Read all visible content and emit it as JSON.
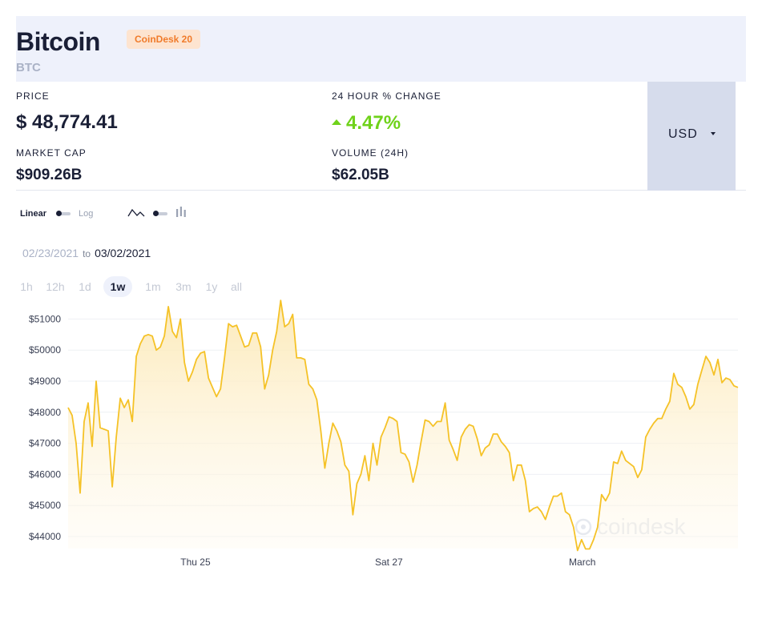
{
  "header": {
    "coin_name": "Bitcoin",
    "badge": "CoinDesk 20",
    "symbol": "BTC"
  },
  "stats": {
    "price_label": "PRICE",
    "price_value": "$ 48,774.41",
    "change_label": "24 HOUR % CHANGE",
    "change_value": "4.47%",
    "change_direction": "up",
    "market_cap_label": "MARKET CAP",
    "market_cap_value": "$909.26B",
    "volume_label": "VOLUME (24H)",
    "volume_value": "$62.05B"
  },
  "currency": {
    "selected": "USD"
  },
  "controls": {
    "scale_linear": "Linear",
    "scale_log": "Log",
    "chart_line_icon": "line-chart-icon",
    "chart_candle_icon": "candlestick-chart-icon"
  },
  "date_range": {
    "from": "02/23/2021",
    "to_word": "to",
    "to": "03/02/2021"
  },
  "ranges": [
    {
      "label": "1h",
      "active": false
    },
    {
      "label": "12h",
      "active": false
    },
    {
      "label": "1d",
      "active": false
    },
    {
      "label": "1w",
      "active": true
    },
    {
      "label": "1m",
      "active": false
    },
    {
      "label": "3m",
      "active": false
    },
    {
      "label": "1y",
      "active": false
    },
    {
      "label": "all",
      "active": false
    }
  ],
  "watermark": "coindesk",
  "colors": {
    "line": "#f5c227",
    "fill_top": "#fce9b6",
    "positive": "#6fd21a",
    "badge_text": "#f07b2b"
  },
  "chart_data": {
    "type": "area",
    "ylim": [
      43500,
      51800
    ],
    "xlim": [
      0,
      142
    ],
    "yticks": [
      44000,
      45000,
      46000,
      47000,
      48000,
      49000,
      50000,
      51000
    ],
    "ytick_labels": [
      "$44000",
      "$45000",
      "$46000",
      "$47000",
      "$48000",
      "$49000",
      "$50000",
      "$51000"
    ],
    "xticks": [
      {
        "x": 27,
        "label": "Thu 25"
      },
      {
        "x": 68,
        "label": "Sat 27"
      },
      {
        "x": 109,
        "label": "March"
      }
    ],
    "grid": true,
    "series": [
      {
        "values": [
          48150,
          47900,
          47000,
          45400,
          47700,
          48300,
          46900,
          49000,
          47500,
          47450,
          47400,
          45600,
          47200,
          48450,
          48150,
          48400,
          47700,
          49800,
          50200,
          50450,
          50500,
          50450,
          50000,
          50100,
          50450,
          51400,
          50600,
          50400,
          51000,
          49600,
          49000,
          49300,
          49700,
          49900,
          49950,
          49100,
          48800,
          48500,
          48750,
          49750,
          50850,
          50750,
          50800,
          50450,
          50100,
          50150,
          50550,
          50550,
          50100,
          48750,
          49200,
          50000,
          50600,
          51600,
          50750,
          50850,
          51150,
          49750,
          49750,
          49700,
          48900,
          48750,
          48400,
          47400,
          46200,
          47000,
          47650,
          47400,
          47050,
          46300,
          46100,
          44700,
          45700,
          46000,
          46600,
          45800,
          47000,
          46300,
          47200,
          47500,
          47850,
          47800,
          47700,
          46700,
          46650,
          46400,
          45750,
          46300,
          47050,
          47750,
          47700,
          47550,
          47700,
          47700,
          48300,
          47100,
          46800,
          46450,
          47200,
          47450,
          47600,
          47550,
          47150,
          46600,
          46850,
          46950,
          47300,
          47300,
          47050,
          46900,
          46700,
          45800,
          46300,
          46300,
          45800,
          44800,
          44900,
          44950,
          44800,
          44550,
          44950,
          45300,
          45300,
          45400,
          44800,
          44700,
          44300,
          43550,
          43900,
          43600,
          43600,
          43900,
          44300,
          45350,
          45150,
          45400,
          46400,
          46350,
          46750,
          46450,
          46350,
          46250,
          45900,
          46150,
          47200,
          47450,
          47650,
          47800,
          47800,
          48100,
          48350,
          49250,
          48900,
          48800,
          48500,
          48100,
          48250,
          48900,
          49350,
          49800,
          49600,
          49200,
          49700,
          48950,
          49100,
          49050,
          48850,
          48800
        ]
      }
    ]
  }
}
